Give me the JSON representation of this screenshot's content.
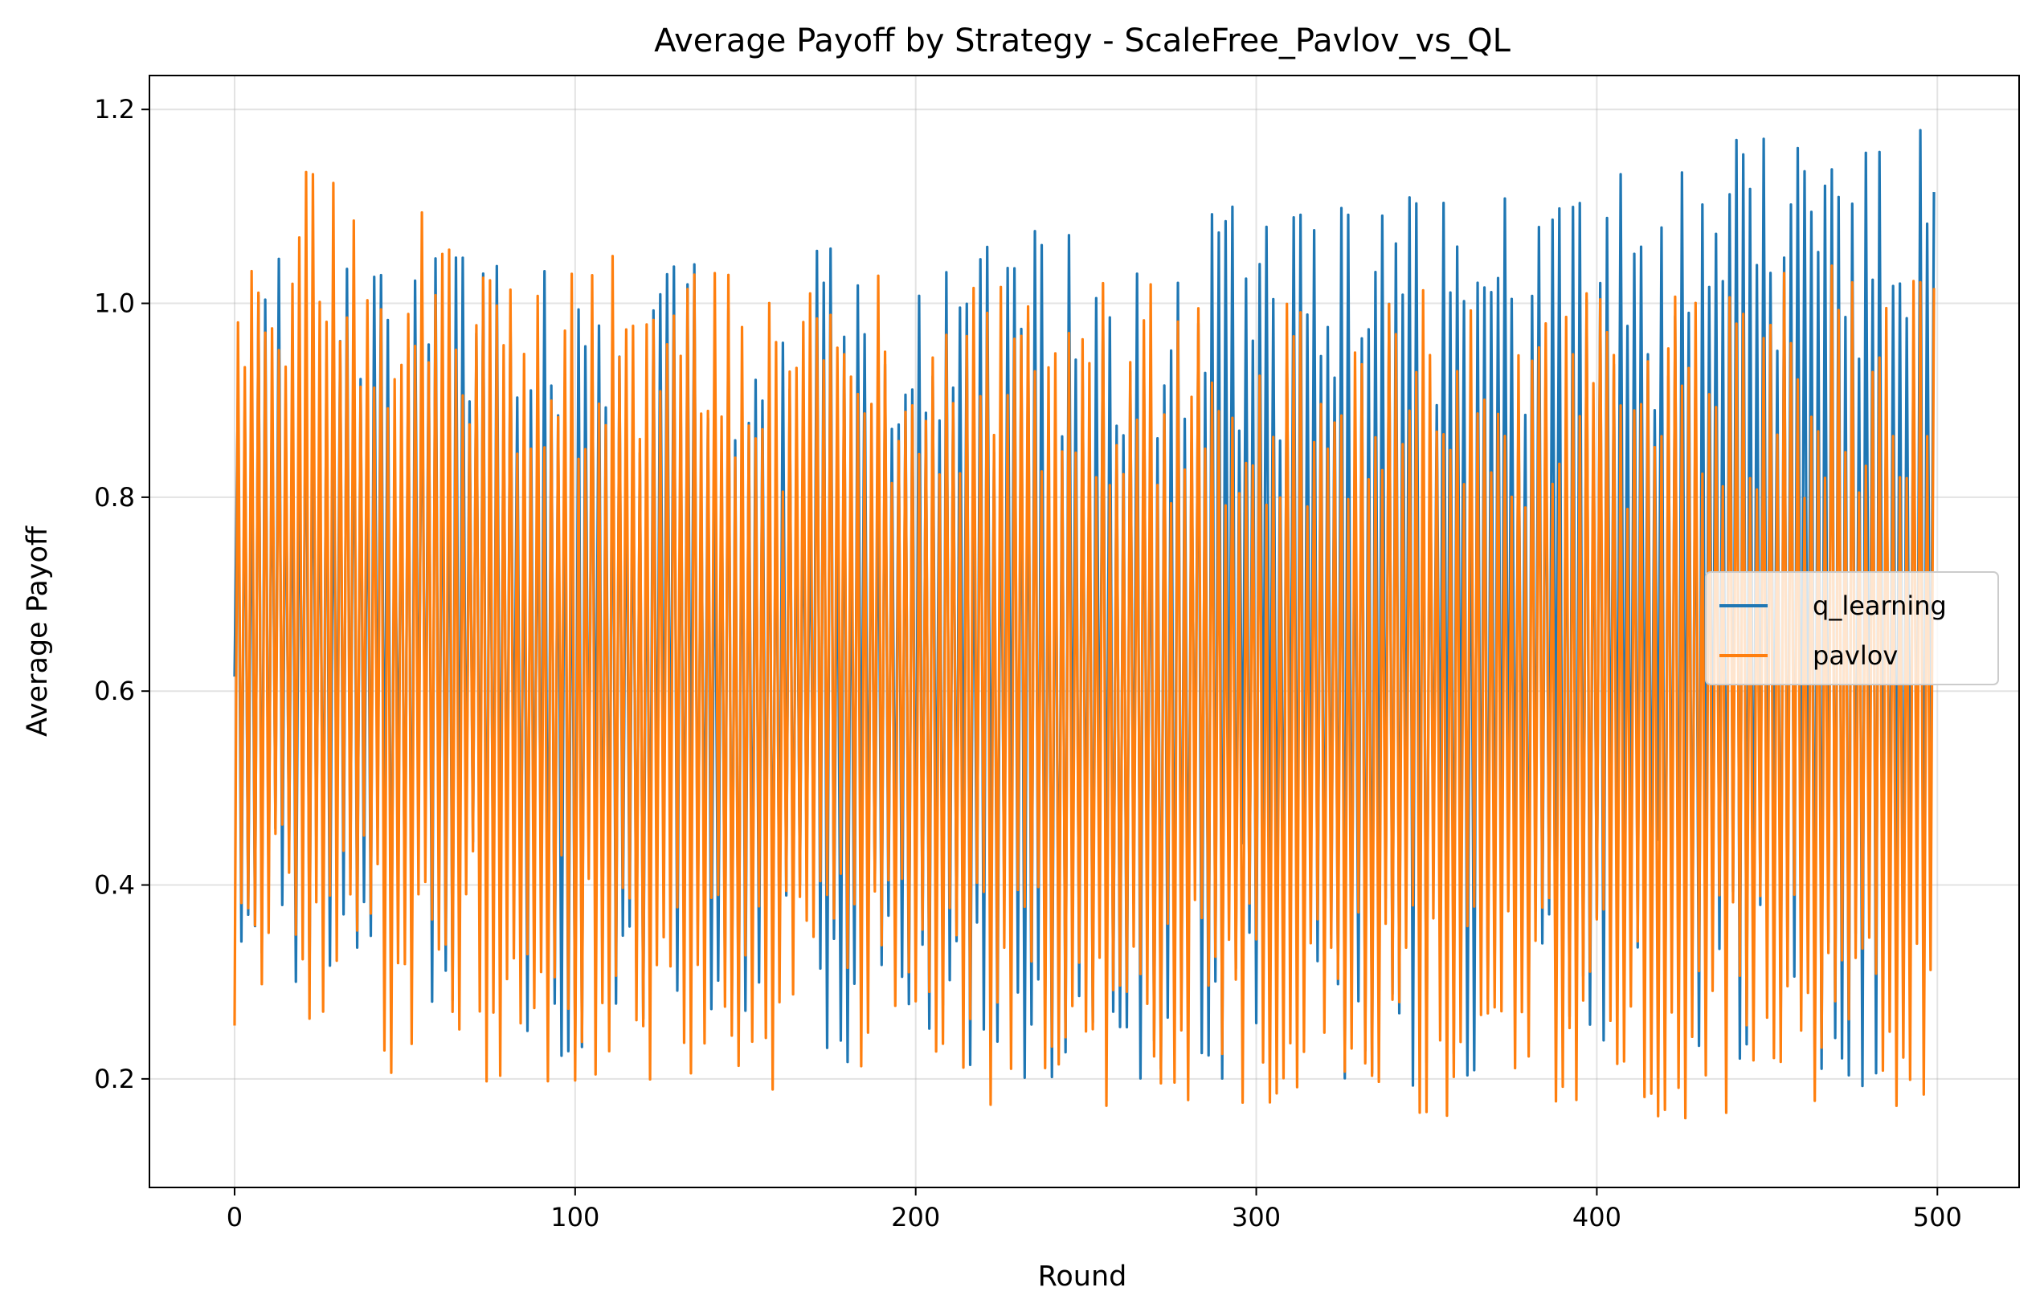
{
  "chart_data": {
    "type": "line",
    "title": "Average Payoff by Strategy - ScaleFree_Pavlov_vs_QL",
    "xlabel": "Round",
    "ylabel": "Average Payoff",
    "xlim": [
      -25,
      524
    ],
    "ylim": [
      0.088,
      1.235
    ],
    "xticks": [
      0,
      100,
      200,
      300,
      400,
      500
    ],
    "yticks": [
      0.2,
      0.4,
      0.6,
      0.8,
      1.0,
      1.2
    ],
    "xtick_labels": [
      "0",
      "100",
      "200",
      "300",
      "400",
      "500"
    ],
    "ytick_labels": [
      "0.2",
      "0.4",
      "0.6",
      "0.8",
      "1.0",
      "1.2"
    ],
    "grid": true,
    "legend_position": "center-right",
    "x_range": [
      0,
      499
    ],
    "series": [
      {
        "name": "q_learning",
        "color": "#1f77b4",
        "pattern": "alternating high/low each round",
        "first_value": 0.615,
        "peaks_by_round": [
          [
            0,
            1.06
          ],
          [
            100,
            1.05
          ],
          [
            200,
            1.06
          ],
          [
            250,
            1.1
          ],
          [
            300,
            1.1
          ],
          [
            350,
            1.12
          ],
          [
            400,
            1.15
          ],
          [
            450,
            1.18
          ],
          [
            499,
            1.18
          ]
        ],
        "troughs_by_round": [
          [
            0,
            0.3
          ],
          [
            100,
            0.22
          ],
          [
            200,
            0.2
          ],
          [
            300,
            0.2
          ],
          [
            400,
            0.18
          ],
          [
            499,
            0.16
          ]
        ]
      },
      {
        "name": "pavlov",
        "color": "#ff7f0e",
        "pattern": "alternating high/low each round",
        "first_value": 0.255,
        "peaks_by_round": [
          [
            0,
            1.18
          ],
          [
            50,
            1.1
          ],
          [
            100,
            1.06
          ],
          [
            150,
            1.04
          ],
          [
            200,
            1.04
          ],
          [
            250,
            1.03
          ],
          [
            300,
            1.02
          ],
          [
            350,
            1.02
          ],
          [
            400,
            1.02
          ],
          [
            450,
            1.04
          ],
          [
            499,
            1.06
          ]
        ],
        "troughs_by_round": [
          [
            0,
            0.26
          ],
          [
            50,
            0.2
          ],
          [
            100,
            0.19
          ],
          [
            150,
            0.18
          ],
          [
            200,
            0.17
          ],
          [
            250,
            0.17
          ],
          [
            300,
            0.17
          ],
          [
            350,
            0.16
          ],
          [
            400,
            0.15
          ],
          [
            450,
            0.15
          ],
          [
            499,
            0.14
          ]
        ]
      }
    ]
  }
}
